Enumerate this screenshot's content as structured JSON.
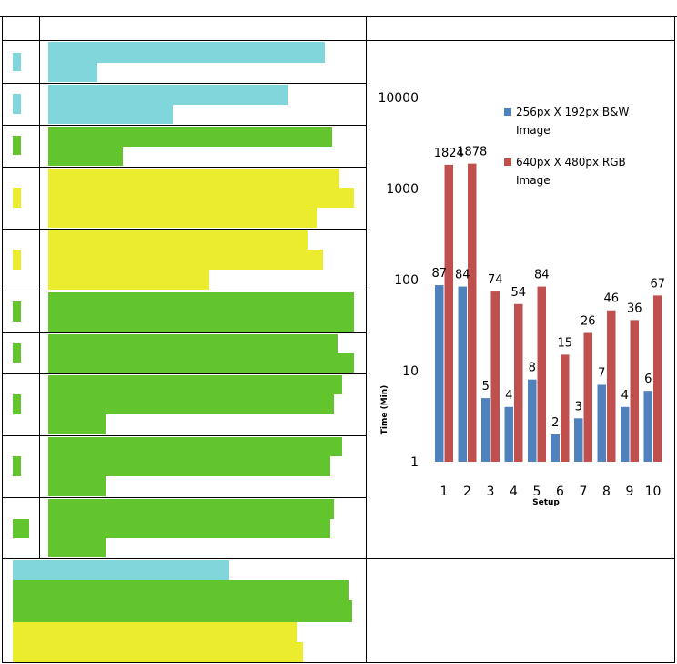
{
  "chart_data": {
    "type": "bar",
    "title": "",
    "xlabel": "Setup",
    "ylabel": "Time (Min)",
    "yscale": "log",
    "ylim": [
      1,
      10000
    ],
    "yticks": [
      "1",
      "10",
      "100",
      "1000",
      "10000"
    ],
    "grid": false,
    "legend_position": "top-right",
    "categories": [
      "1",
      "2",
      "3",
      "4",
      "5",
      "6",
      "7",
      "8",
      "9",
      "10"
    ],
    "series": [
      {
        "name": "256px X 192px B&W Image",
        "color": "#4f81bd",
        "values": [
          87,
          84,
          5,
          4,
          8,
          2,
          3,
          7,
          4,
          6
        ],
        "labels": [
          "87",
          "84",
          "5",
          "4",
          "8",
          "2",
          "3",
          "7",
          "4",
          "6"
        ]
      },
      {
        "name": "640px X 480px RGB Image",
        "color": "#c0504d",
        "values": [
          1824,
          1878,
          74,
          54,
          84,
          15,
          26,
          46,
          36,
          67
        ],
        "labels": [
          "1824",
          "1878",
          "74",
          "54",
          "84",
          "15",
          "26",
          "46",
          "36",
          "67"
        ]
      }
    ]
  },
  "decor_colors": {
    "cyan": "#80d6da",
    "green": "#62c52e",
    "yellow": "#ecec2e"
  }
}
